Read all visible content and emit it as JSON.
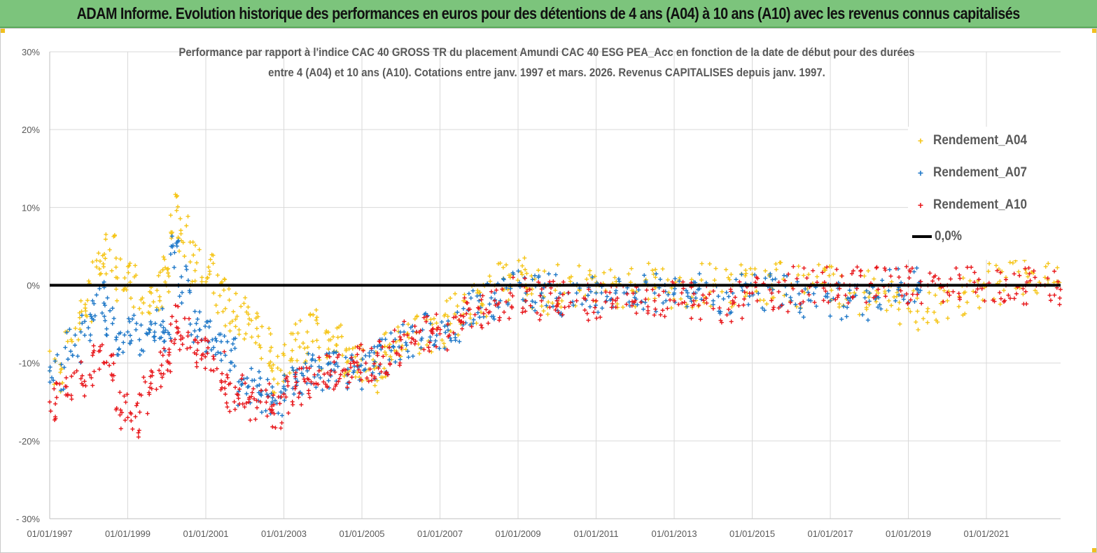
{
  "banner": {
    "title": "ADAM Informe. Evolution historique des performances en euros pour des détentions de 4 ans (A04) à 10 ans (A10) avec les revenus connus capitalisés"
  },
  "chart_data": {
    "type": "scatter",
    "title_line1": "Performance par rapport à l'indice CAC 40 GROSS TR  du placement Amundi CAC 40 ESG PEA_Acc en fonction de la date de début pour des durées",
    "title_line2": "entre 4 (A04) et 10 ans (A10). Cotations entre janv. 1997 et mars. 2026. Revenus CAPITALISES depuis janv. 1997.",
    "xlabel": "",
    "ylabel": "",
    "xlim": [
      1997.0,
      2022.9
    ],
    "ylim": [
      -30,
      30
    ],
    "grid": true,
    "legend_position": "top-right",
    "y_ticks": [
      30,
      20,
      10,
      0,
      -10,
      -20,
      -30
    ],
    "y_tick_labels": [
      "30%",
      "20%",
      "10%",
      "0%",
      "-10%",
      "-20%",
      "- 30%"
    ],
    "x_ticks": [
      1997,
      1999,
      2001,
      2003,
      2005,
      2007,
      2009,
      2011,
      2013,
      2015,
      2017,
      2019,
      2021
    ],
    "x_tick_labels": [
      "01/01/1997",
      "01/01/1999",
      "01/01/2001",
      "01/01/2003",
      "01/01/2005",
      "01/01/2007",
      "01/01/2009",
      "01/01/2011",
      "01/01/2013",
      "01/01/2015",
      "01/01/2017",
      "01/01/2019",
      "01/01/2021"
    ],
    "series": [
      {
        "name": "Rendement_A04",
        "color": "#f5c518",
        "marker": "+",
        "x": [
          1997.0,
          1997.4,
          1997.8,
          1998.1,
          1998.4,
          1998.7,
          1999.0,
          1999.3,
          1999.6,
          1999.9,
          2000.1,
          2000.3,
          2000.6,
          2000.9,
          2001.2,
          2001.5,
          2001.8,
          2002.1,
          2002.4,
          2002.7,
          2003.0,
          2003.3,
          2003.6,
          2003.9,
          2004.2,
          2004.5,
          2004.8,
          2005.1,
          2005.4,
          2005.7,
          2006.0,
          2006.4,
          2006.8,
          2007.2,
          2007.6,
          2008.0,
          2008.4,
          2008.8,
          2009.2,
          2009.6,
          2010.0,
          2010.5,
          2011.0,
          2011.5,
          2012.0,
          2012.5,
          2013.0,
          2013.5,
          2014.0,
          2014.5,
          2015.0,
          2015.5,
          2016.0,
          2016.5,
          2017.0,
          2017.5,
          2018.0,
          2018.5,
          2019.0,
          2019.5,
          2020.0,
          2020.5,
          2021.0,
          2021.5,
          2022.0,
          2022.5
        ],
        "y": [
          -11,
          -6,
          -2,
          3,
          4,
          1,
          0,
          -3,
          -1,
          2,
          9,
          6,
          3,
          1,
          -1,
          -3,
          -4,
          -5,
          -8,
          -11,
          -9,
          -7,
          -6,
          -8,
          -7,
          -9,
          -10,
          -11,
          -9,
          -8,
          -7,
          -6,
          -5,
          -4,
          -2,
          -1,
          0,
          1,
          0,
          -1,
          0,
          0,
          0,
          0,
          0,
          0,
          0,
          0,
          0,
          0,
          0,
          0,
          0,
          0,
          0,
          -1,
          -1,
          -2,
          -3,
          -3,
          -2,
          0,
          0,
          1,
          2,
          1
        ]
      },
      {
        "name": "Rendement_A07",
        "color": "#1f78c8",
        "marker": "+",
        "x": [
          1997.0,
          1997.4,
          1997.8,
          1998.1,
          1998.4,
          1998.7,
          1999.0,
          1999.3,
          1999.6,
          1999.9,
          2000.1,
          2000.3,
          2000.6,
          2000.9,
          2001.2,
          2001.5,
          2001.8,
          2002.1,
          2002.4,
          2002.7,
          2003.0,
          2003.3,
          2003.6,
          2003.9,
          2004.2,
          2004.5,
          2004.8,
          2005.1,
          2005.4,
          2005.7,
          2006.0,
          2006.4,
          2006.8,
          2007.2,
          2007.6,
          2008.0,
          2008.4,
          2008.8,
          2009.2,
          2009.6,
          2010.0,
          2010.5,
          2011.0,
          2011.5,
          2012.0,
          2012.5,
          2013.0,
          2013.5,
          2014.0,
          2014.5,
          2015.0,
          2015.5,
          2016.0,
          2016.5,
          2017.0,
          2017.5,
          2018.0,
          2018.5,
          2019.0
        ],
        "y": [
          -11,
          -8,
          -6,
          -2,
          -4,
          -7,
          -6,
          -7,
          -5,
          -6,
          4,
          0,
          -5,
          -7,
          -8,
          -9,
          -14,
          -13,
          -14,
          -15,
          -13,
          -12,
          -11,
          -11,
          -10,
          -11,
          -11,
          -10,
          -9,
          -8,
          -7,
          -6,
          -6,
          -5,
          -3,
          -2,
          -1,
          0,
          -1,
          -1,
          -2,
          -1,
          -1,
          -1,
          -1,
          -1,
          -1,
          -1,
          -2,
          -1,
          -1,
          -1,
          -2,
          -2,
          -2,
          -2,
          -1,
          0,
          0
        ]
      },
      {
        "name": "Rendement_A10",
        "color": "#e8181c",
        "marker": "+",
        "x": [
          1997.0,
          1997.4,
          1997.8,
          1998.1,
          1998.4,
          1998.7,
          1999.0,
          1999.3,
          1999.6,
          1999.9,
          2000.1,
          2000.3,
          2000.6,
          2000.9,
          2001.2,
          2001.5,
          2001.8,
          2002.1,
          2002.4,
          2002.7,
          2003.0,
          2003.3,
          2003.6,
          2003.9,
          2004.2,
          2004.5,
          2004.8,
          2005.1,
          2005.4,
          2005.7,
          2006.0,
          2006.4,
          2006.8,
          2007.2,
          2007.6,
          2008.0,
          2008.4,
          2008.8,
          2009.2,
          2009.6,
          2010.0,
          2010.5,
          2011.0,
          2011.5,
          2012.0,
          2012.5,
          2013.0,
          2013.5,
          2014.0,
          2014.5,
          2015.0,
          2015.5,
          2016.0,
          2016.5,
          2017.0,
          2017.5,
          2018.0,
          2018.5,
          2019.0,
          2019.5,
          2020.0,
          2020.5,
          2021.0,
          2021.5,
          2022.0,
          2022.5
        ],
        "y": [
          -15,
          -13,
          -12,
          -9,
          -10,
          -16,
          -17,
          -14,
          -11,
          -9,
          -5,
          -6,
          -8,
          -9,
          -11,
          -14,
          -14,
          -15,
          -15,
          -16,
          -14,
          -13,
          -12,
          -11,
          -11,
          -11,
          -10,
          -10,
          -9,
          -8,
          -7,
          -6,
          -6,
          -5,
          -4,
          -3,
          -2,
          -1,
          -2,
          -2,
          -2,
          -2,
          -2,
          -2,
          -2,
          -2,
          -2,
          -2,
          -3,
          -2,
          -1,
          -1,
          0,
          0,
          0,
          0,
          0,
          0,
          0,
          0,
          0,
          0,
          0,
          0,
          0,
          0
        ]
      },
      {
        "name": "0,0%",
        "color": "#000000",
        "marker": "line",
        "x": [
          1997.0,
          2022.9
        ],
        "y": [
          0,
          0
        ]
      }
    ]
  }
}
